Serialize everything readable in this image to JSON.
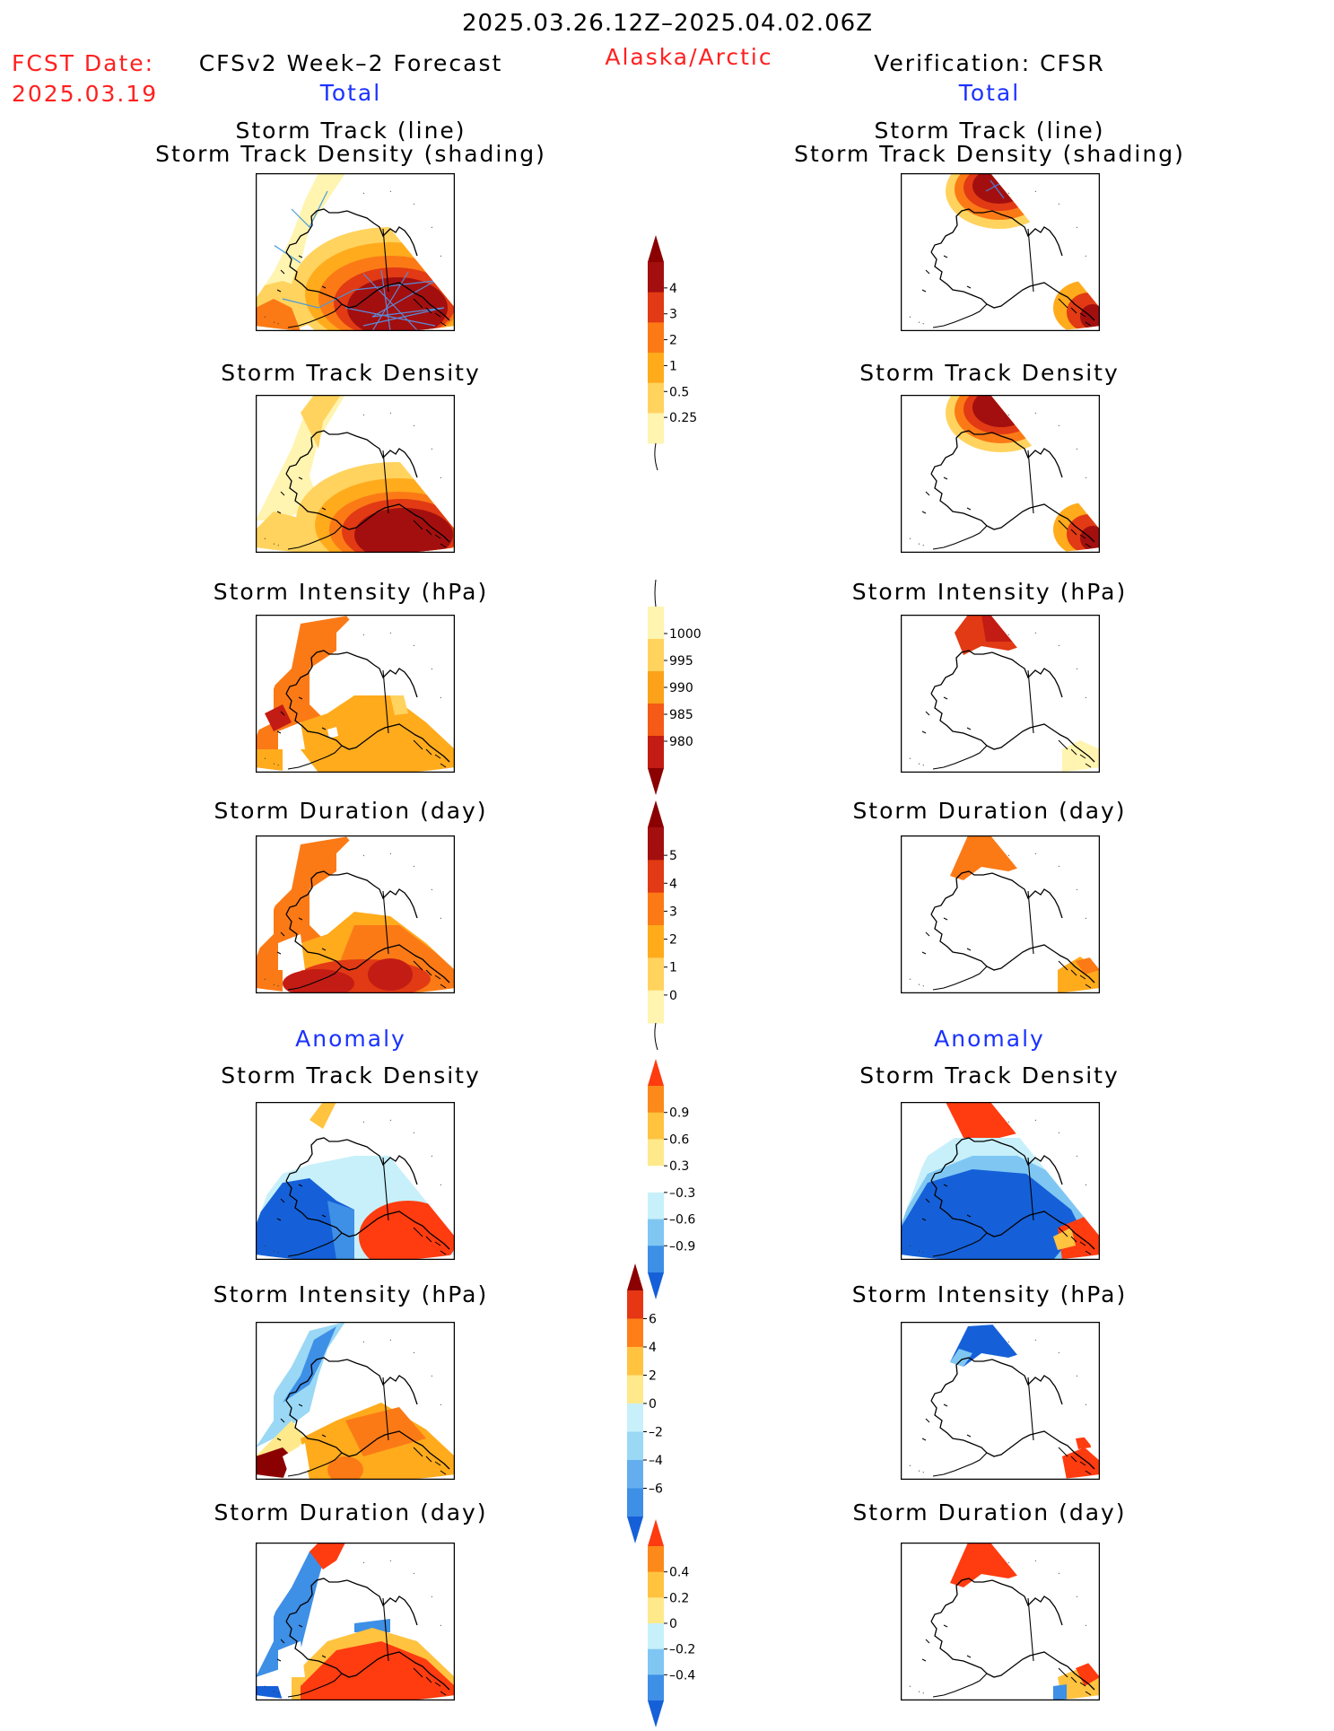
{
  "header": {
    "time_range": "2025.03.26.12Z–2025.04.02.06Z",
    "fcst_date_label": "FCST Date:",
    "fcst_date_value": "2025.03.19",
    "forecast_title": "CFSv2 Week–2 Forecast",
    "region": "Alaska/Arctic",
    "verification_title": "Verification: CFSR",
    "left_section": "Total",
    "right_section": "Total"
  },
  "anomaly_label": "Anomaly",
  "panels": {
    "track_line": "Storm Track (line)",
    "track_density_shading": "Storm Track Density (shading)",
    "track_density": "Storm Track Density",
    "intensity": "Storm Intensity (hPa)",
    "duration": "Storm Duration (day)"
  },
  "colorbars": [
    {
      "id": "density_total",
      "ticks": [
        "4",
        "3",
        "2",
        "1",
        "0.5",
        "0.25"
      ],
      "colors": [
        "#a30f0f",
        "#e13a14",
        "#fb7a16",
        "#ffab1c",
        "#ffd35e",
        "#fff4b0"
      ],
      "top_arrow": "#8b0000",
      "bottom": "line"
    },
    {
      "id": "intensity_total",
      "ticks": [
        "1000",
        "995",
        "990",
        "985",
        "980"
      ],
      "colors": [
        "#fff4b0",
        "#ffd35e",
        "#fba21a",
        "#f55a16",
        "#c31c14"
      ],
      "top_arrow": "none",
      "bottom_arrow": "#8b0000"
    },
    {
      "id": "duration_total",
      "ticks": [
        "5",
        "4",
        "3",
        "2",
        "1",
        "0"
      ],
      "colors": [
        "#a30f0f",
        "#e13a14",
        "#fb7a16",
        "#ffab1c",
        "#ffd35e",
        "#fff4b0"
      ],
      "top_arrow": "#8b0000",
      "bottom": "line"
    },
    {
      "id": "density_anom",
      "ticks": [
        "0.9",
        "0.6",
        "0.3",
        "–0.3",
        "–0.6",
        "–0.9"
      ],
      "colors": [
        "#fb8a1a",
        "#ffc340",
        "#ffe98a",
        "#ffffff",
        "#c8f0fa",
        "#7fc7f2",
        "#3e8fe6"
      ],
      "top_arrow": "#ff3b10",
      "bottom_arrow": "#1560d8"
    },
    {
      "id": "intensity_anom",
      "ticks": [
        "6",
        "4",
        "2",
        "0",
        "–2",
        "–4",
        "–6"
      ],
      "colors": [
        "#e63614",
        "#ff7e18",
        "#ffc340",
        "#ffe98a",
        "#c8f0fa",
        "#9ad8f5",
        "#64aef0",
        "#3e8fe6"
      ],
      "top_arrow": "#8b0000",
      "bottom_arrow": "#1560d8"
    },
    {
      "id": "duration_anom",
      "ticks": [
        "0.4",
        "0.2",
        "0",
        "–0.2",
        "–0.4"
      ],
      "colors": [
        "#fb8a1a",
        "#ffc340",
        "#ffe98a",
        "#c8f0fa",
        "#7fc7f2",
        "#3e8fe6"
      ],
      "top_arrow": "#ff3b10",
      "bottom_arrow": "#1560d8"
    }
  ]
}
